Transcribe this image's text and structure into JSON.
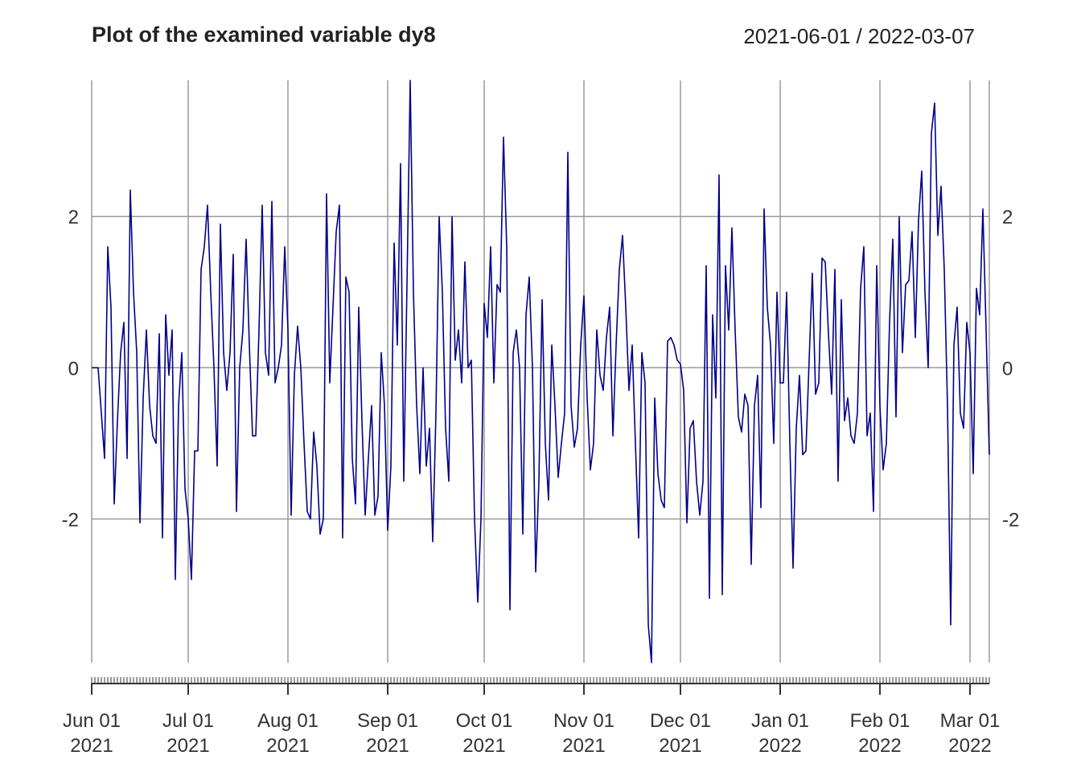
{
  "chart_data": {
    "type": "line",
    "title": "Plot of the examined variable dy8",
    "date_range": "2021-06-01 / 2022-03-07",
    "xlim": [
      "2021-06-01",
      "2022-03-07"
    ],
    "ylim": [
      -3.9,
      3.8
    ],
    "y_ticks": [
      -2,
      0,
      2
    ],
    "y_tick_labels": [
      "-2",
      "0",
      "2"
    ],
    "x_ticks": [
      {
        "date": "2021-06-01",
        "line1": "Jun 01",
        "line2": "2021"
      },
      {
        "date": "2021-07-01",
        "line1": "Jul 01",
        "line2": "2021"
      },
      {
        "date": "2021-08-01",
        "line1": "Aug 01",
        "line2": "2021"
      },
      {
        "date": "2021-09-01",
        "line1": "Sep 01",
        "line2": "2021"
      },
      {
        "date": "2021-10-01",
        "line1": "Oct 01",
        "line2": "2021"
      },
      {
        "date": "2021-11-01",
        "line1": "Nov 01",
        "line2": "2021"
      },
      {
        "date": "2021-12-01",
        "line1": "Dec 01",
        "line2": "2021"
      },
      {
        "date": "2022-01-01",
        "line1": "Jan 01",
        "line2": "2022"
      },
      {
        "date": "2022-02-01",
        "line1": "Feb 01",
        "line2": "2022"
      },
      {
        "date": "2022-03-01",
        "line1": "Mar 01",
        "line2": "2022"
      }
    ],
    "grid": true,
    "line_color": "#00008B",
    "grid_color": "#9a9a9a",
    "series": [
      {
        "values": [
          0.0,
          0.0,
          0.0,
          -0.6,
          -1.2,
          1.6,
          0.8,
          -1.8,
          -0.7,
          0.2,
          0.6,
          -1.2,
          2.35,
          1.0,
          0.2,
          -2.05,
          -0.4,
          0.5,
          -0.5,
          -0.9,
          -1.0,
          0.45,
          -2.25,
          0.7,
          -0.1,
          0.5,
          -2.8,
          -0.5,
          0.2,
          -1.6,
          -2.0,
          -2.8,
          -1.1,
          -1.1,
          1.3,
          1.6,
          2.15,
          1.0,
          0.0,
          -1.3,
          1.9,
          0.2,
          -0.3,
          0.2,
          1.5,
          -1.9,
          0.0,
          0.5,
          1.7,
          0.3,
          -0.9,
          -0.9,
          0.5,
          2.15,
          0.2,
          -0.1,
          2.2,
          -0.2,
          0.0,
          0.3,
          1.6,
          0.5,
          -1.95,
          -0.1,
          0.55,
          0.0,
          -1.0,
          -1.9,
          -2.0,
          -0.85,
          -1.3,
          -2.2,
          -2.0,
          2.3,
          -0.2,
          0.8,
          1.8,
          2.15,
          -2.25,
          1.2,
          1.0,
          -1.2,
          -1.8,
          0.8,
          -0.7,
          -1.95,
          -1.2,
          -0.5,
          -1.95,
          -1.7,
          0.2,
          -0.5,
          -2.15,
          -1.3,
          1.65,
          0.3,
          2.7,
          -1.5,
          1.1,
          3.8,
          1.0,
          -0.5,
          -1.4,
          0.0,
          -1.3,
          -0.8,
          -2.3,
          -0.6,
          2.0,
          1.0,
          -0.8,
          -1.5,
          2.0,
          0.1,
          0.5,
          -0.2,
          1.4,
          0.0,
          0.1,
          -2.0,
          -3.1,
          -2.0,
          0.85,
          0.4,
          1.6,
          -0.2,
          1.1,
          1.0,
          3.05,
          1.6,
          -3.2,
          0.2,
          0.5,
          0.0,
          -2.2,
          0.7,
          1.2,
          0.0,
          -2.7,
          -1.5,
          0.9,
          -1.0,
          -1.75,
          0.3,
          -0.5,
          -1.45,
          -1.0,
          -0.6,
          2.85,
          -0.5,
          -1.05,
          -0.8,
          0.3,
          0.95,
          -0.4,
          -1.35,
          -1.0,
          0.5,
          -0.1,
          -0.3,
          0.4,
          0.8,
          -0.9,
          0.3,
          1.3,
          1.75,
          0.8,
          -0.3,
          0.3,
          -1.0,
          -2.25,
          0.2,
          -0.2,
          -3.4,
          -3.9,
          -0.4,
          -1.4,
          -1.75,
          -1.85,
          0.35,
          0.4,
          0.3,
          0.1,
          0.05,
          -0.3,
          -2.05,
          -0.8,
          -0.7,
          -1.5,
          -1.95,
          -1.5,
          1.35,
          -3.05,
          0.7,
          -0.4,
          2.55,
          -3.0,
          1.35,
          0.5,
          1.85,
          0.5,
          -0.65,
          -0.85,
          -0.35,
          -0.5,
          -2.6,
          -0.5,
          -0.1,
          -1.85,
          2.1,
          0.8,
          0.3,
          -1.0,
          1.0,
          -0.2,
          -0.2,
          1.0,
          -1.0,
          -2.65,
          -0.8,
          -0.1,
          -1.15,
          -1.1,
          0.1,
          1.25,
          -0.35,
          -0.2,
          1.45,
          1.4,
          0.45,
          -0.35,
          1.3,
          -1.5,
          0.9,
          -0.7,
          -0.4,
          -0.9,
          -1.0,
          -0.6,
          1.05,
          1.6,
          -0.9,
          -0.6,
          -1.9,
          1.35,
          -0.5,
          -1.35,
          -1.0,
          0.6,
          1.7,
          -0.65,
          2.0,
          0.2,
          1.1,
          1.15,
          1.8,
          0.4,
          1.95,
          2.6,
          1.0,
          0.0,
          3.1,
          3.5,
          1.75,
          2.4,
          1.3,
          -0.5,
          -3.4,
          0.3,
          0.8,
          -0.6,
          -0.8,
          0.6,
          0.2,
          -1.4,
          1.05,
          0.7,
          2.1,
          0.5,
          -1.15
        ]
      }
    ]
  }
}
